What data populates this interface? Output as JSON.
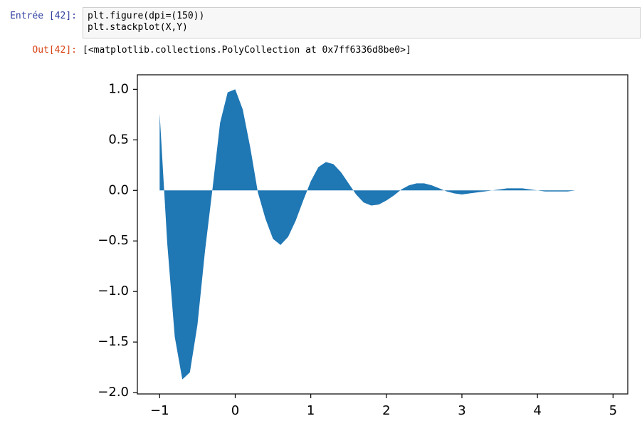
{
  "cell": {
    "input_prompt": "Entrée [42]:",
    "code": [
      "plt.figure(dpi=(150))",
      "plt.stackplot(X,Y)"
    ],
    "output_prompt": "Out[42]:",
    "output": "[<matplotlib.collections.PolyCollection at 0x7ff6336d8be0>]"
  },
  "chart_data": {
    "type": "stackplot",
    "x": [
      -1.0,
      -0.9,
      -0.8,
      -0.7,
      -0.6,
      -0.5,
      -0.4,
      -0.3,
      -0.2,
      -0.1,
      0.0,
      0.1,
      0.2,
      0.3,
      0.4,
      0.5,
      0.6,
      0.7,
      0.8,
      0.9,
      1.0,
      1.1,
      1.2,
      1.3,
      1.4,
      1.5,
      1.6,
      1.7,
      1.8,
      1.9,
      2.0,
      2.1,
      2.2,
      2.3,
      2.4,
      2.5,
      2.6,
      2.7,
      2.8,
      2.9,
      3.0,
      3.1,
      3.2,
      3.3,
      3.4,
      3.5,
      3.6,
      3.7,
      3.8,
      3.9,
      4.0,
      4.1,
      4.2,
      4.3,
      4.4,
      4.5,
      4.6,
      4.7,
      4.8,
      4.9
    ],
    "series": [
      {
        "color": "#1f77b4",
        "values": [
          0.76,
          -0.52,
          -1.45,
          -1.87,
          -1.8,
          -1.33,
          -0.6,
          0.02,
          0.67,
          0.97,
          1.0,
          0.8,
          0.42,
          -0.02,
          -0.28,
          -0.48,
          -0.54,
          -0.46,
          -0.3,
          -0.1,
          0.09,
          0.23,
          0.28,
          0.26,
          0.18,
          0.07,
          -0.04,
          -0.12,
          -0.15,
          -0.14,
          -0.1,
          -0.05,
          0.01,
          0.05,
          0.07,
          0.07,
          0.05,
          0.02,
          -0.01,
          -0.03,
          -0.04,
          -0.03,
          -0.02,
          -0.01,
          0.0,
          0.01,
          0.02,
          0.02,
          0.02,
          0.01,
          0.0,
          -0.01,
          -0.01,
          -0.01,
          -0.01,
          0.0,
          0.0,
          0.0,
          0.0,
          0.0
        ]
      }
    ],
    "xlim": [
      -1.295,
      5.195
    ],
    "ylim": [
      -2.0135,
      1.1435
    ],
    "xticks": [
      {
        "value": -1,
        "label": "−1"
      },
      0,
      1,
      2,
      3,
      4,
      5
    ],
    "yticks": [
      {
        "value": -2,
        "label": "−2.0"
      },
      {
        "value": -1.5,
        "label": "−1.5"
      },
      {
        "value": -1,
        "label": "−1.0"
      },
      {
        "value": -0.5,
        "label": "−0.5"
      },
      {
        "value": 0,
        "label": "0.0"
      },
      {
        "value": 0.5,
        "label": "0.5"
      },
      {
        "value": 1,
        "label": "1.0"
      }
    ]
  }
}
